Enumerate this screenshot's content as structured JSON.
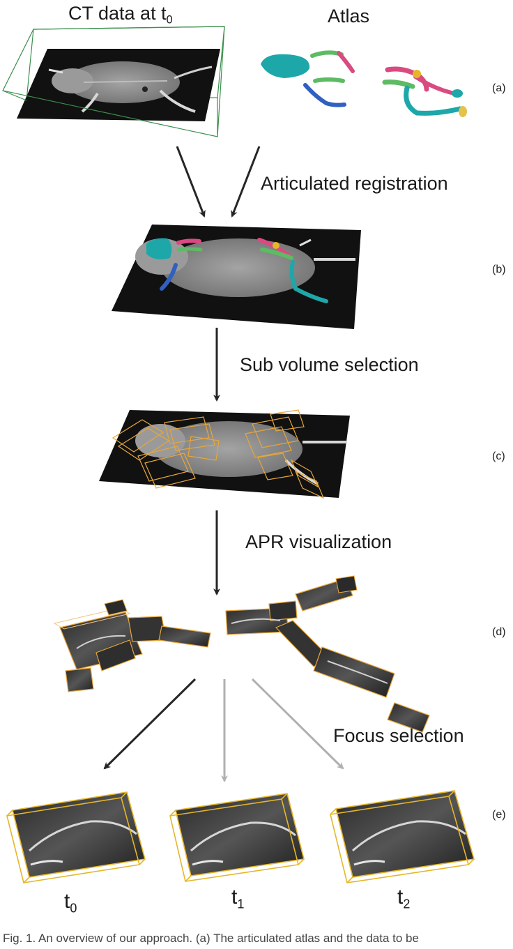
{
  "diagram": {
    "stages": {
      "a": {
        "left_title": "CT data at t",
        "left_title_sub": "0",
        "right_title": "Atlas",
        "panel": "(a)"
      },
      "b": {
        "step": "Articulated registration",
        "panel": "(b)"
      },
      "c": {
        "step": "Sub volume selection",
        "panel": "(c)"
      },
      "d": {
        "step": "APR visualization",
        "panel": "(d)"
      },
      "e": {
        "step": "Focus selection",
        "panel": "(e)"
      }
    },
    "time_labels": [
      {
        "base": "t",
        "sub": "0"
      },
      {
        "base": "t",
        "sub": "1"
      },
      {
        "base": "t",
        "sub": "2"
      }
    ],
    "caption": "Fig. 1.  An overview of our approach. (a) The articulated atlas and the data to be"
  },
  "colors": {
    "slab": "#111111",
    "body_gray": "#8f8f8f",
    "bone": "#e9e9e9",
    "bounding_box_green": "#3a8f4c",
    "box_orange": "#e8a63a",
    "box_yellow": "#e5b62a",
    "arrow_dark": "#262626",
    "arrow_gray": "#b0b0b0",
    "atlas_teal": "#1ea7a9",
    "atlas_green": "#5dbb63",
    "atlas_pink": "#d94b80",
    "atlas_blue": "#3060c0"
  }
}
